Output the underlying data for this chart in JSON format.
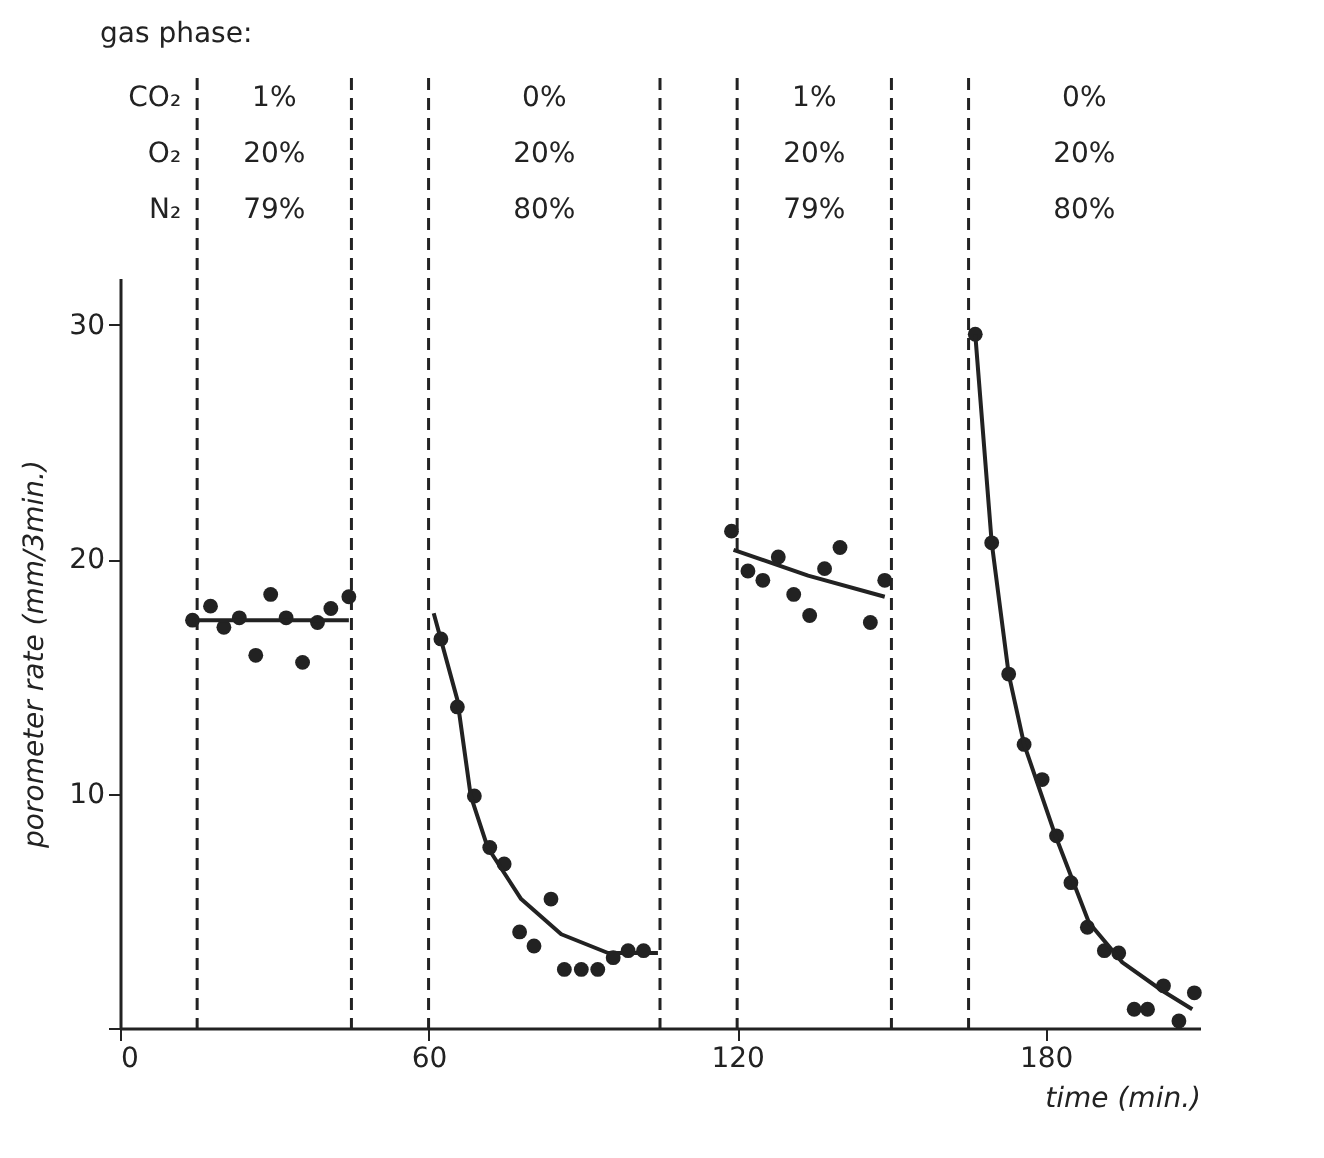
{
  "chart_data": {
    "type": "scatter",
    "xlabel": "time (min.)",
    "ylabel": "porometer rate (mm/3min.)",
    "xlim": [
      0,
      210
    ],
    "ylim": [
      0,
      32
    ],
    "xticks": [
      0,
      60,
      120,
      180
    ],
    "yticks": [
      {
        "value": 0,
        "label": null
      },
      10,
      20,
      30
    ],
    "grid": false,
    "marker": "circle",
    "series": [
      {
        "color": "#222222",
        "x": [
          14.1,
          17.6,
          20.2,
          23.2,
          26.4,
          29.3,
          32.3,
          35.5,
          38.4,
          41.0,
          44.5,
          62.4,
          65.6,
          68.9,
          71.9,
          74.7,
          77.7,
          80.5,
          83.8,
          86.4,
          89.7,
          92.9,
          95.9,
          98.8,
          101.8,
          118.9,
          122.1,
          125.0,
          128.0,
          131.0,
          134.1,
          137.0,
          140.0,
          145.9,
          148.7,
          166.3,
          169.5,
          172.8,
          175.8,
          179.3,
          182.1,
          184.9,
          188.1,
          191.4,
          194.2,
          197.2,
          199.8,
          202.9,
          205.9,
          208.9
        ],
        "values": [
          17.4,
          18.0,
          17.1,
          17.5,
          15.9,
          18.5,
          17.5,
          15.6,
          17.3,
          17.9,
          18.4,
          16.6,
          13.7,
          9.9,
          7.7,
          7.0,
          4.1,
          3.5,
          5.5,
          2.5,
          2.5,
          2.5,
          3.0,
          3.3,
          3.3,
          21.2,
          19.5,
          19.1,
          20.1,
          18.5,
          17.6,
          19.6,
          20.5,
          17.3,
          19.1,
          29.6,
          20.7,
          15.1,
          12.1,
          10.6,
          8.2,
          6.2,
          4.3,
          3.3,
          3.2,
          0.8,
          0.8,
          1.8,
          0.3,
          1.5
        ]
      },
      {
        "type": "line",
        "marker": "none",
        "color": "#222222",
        "x": [
          14.1,
          44.5
        ],
        "values": [
          17.4,
          17.4
        ]
      },
      {
        "type": "line",
        "marker": "none",
        "color": "#222222",
        "x": [
          61.0,
          65.6,
          68.2,
          71.5,
          78.0,
          85.8,
          94.9,
          104.6
        ],
        "values": [
          17.7,
          14.0,
          9.9,
          7.7,
          5.5,
          4.0,
          3.2,
          3.2
        ]
      },
      {
        "type": "line",
        "marker": "none",
        "color": "#222222",
        "x": [
          119.3,
          133.8,
          148.7
        ],
        "values": [
          20.4,
          19.3,
          18.4
        ]
      },
      {
        "type": "line",
        "marker": "none",
        "color": "#222222",
        "x": [
          166.3,
          169.5,
          172.8,
          175.8,
          181.9,
          188.4,
          194.9,
          202.6,
          208.5
        ],
        "values": [
          29.6,
          20.7,
          15.1,
          12.1,
          8.2,
          4.5,
          2.8,
          1.6,
          0.8
        ]
      }
    ],
    "ref_lines": [
      {
        "axis": "x",
        "value": 15,
        "line_style": "dashed",
        "color": "#222222"
      },
      {
        "axis": "x",
        "value": 45,
        "line_style": "dashed",
        "color": "#222222"
      },
      {
        "axis": "x",
        "value": 60,
        "line_style": "dashed",
        "color": "#222222"
      },
      {
        "axis": "x",
        "value": 105,
        "line_style": "dashed",
        "color": "#222222"
      },
      {
        "axis": "x",
        "value": 120,
        "line_style": "dashed",
        "color": "#222222"
      },
      {
        "axis": "x",
        "value": 150,
        "line_style": "dashed",
        "color": "#222222"
      },
      {
        "axis": "x",
        "value": 165,
        "line_style": "dashed",
        "color": "#222222"
      }
    ],
    "annotations": [
      "gas phase:",
      "CO₂",
      "1%",
      "0%",
      "1%",
      "0%",
      "O₂",
      "20%",
      "20%",
      "20%",
      "20%",
      "N₂",
      "79%",
      "80%",
      "79%",
      "80%"
    ]
  }
}
